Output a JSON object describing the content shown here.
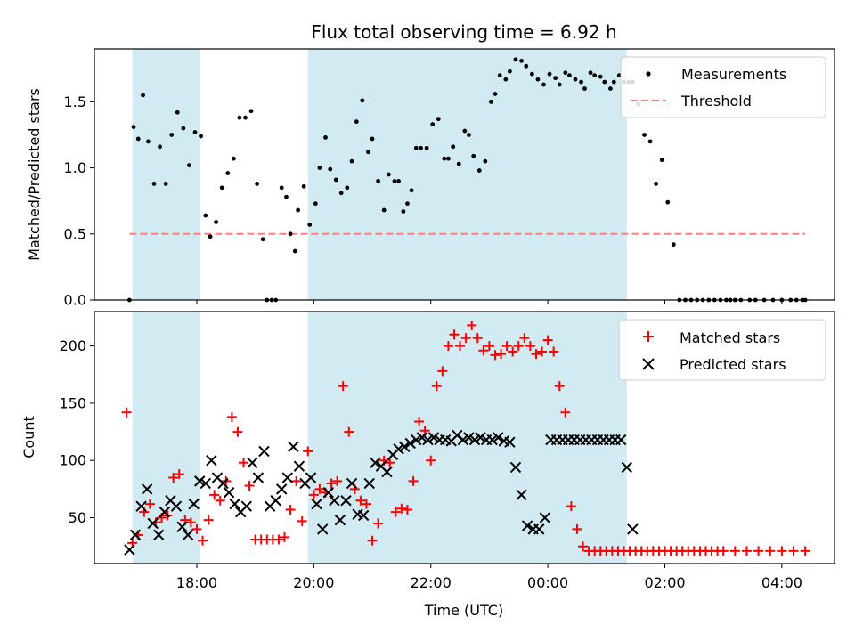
{
  "chart_data": {
    "type": "scatter",
    "title": "Flux total observing time = 6.92 h",
    "xlabel": "Time (UTC)",
    "x_unit": "hours since 00:00 UTC",
    "x_range": [
      -7.75,
      4.9
    ],
    "x_ticks": [
      {
        "value": -6,
        "label": "18:00"
      },
      {
        "value": -4,
        "label": "20:00"
      },
      {
        "value": -2,
        "label": "22:00"
      },
      {
        "value": 0,
        "label": "00:00"
      },
      {
        "value": 2,
        "label": "02:00"
      },
      {
        "value": 4,
        "label": "04:00"
      }
    ],
    "shaded_intervals": [
      [
        -7.1,
        -5.95
      ],
      [
        -4.1,
        1.35
      ]
    ],
    "shade_color": "#add8e6",
    "top_panel": {
      "ylabel": "Matched/Predicted stars",
      "ylim": [
        0,
        1.9
      ],
      "yticks": [
        {
          "value": 0,
          "label": "0.0"
        },
        {
          "value": 0.5,
          "label": "0.5"
        },
        {
          "value": 1.0,
          "label": "1.0"
        },
        {
          "value": 1.5,
          "label": "1.5"
        }
      ],
      "threshold": {
        "value": 0.5,
        "x_range": [
          -7.15,
          4.4
        ],
        "color": "#ff7f7f"
      },
      "legend": [
        {
          "name": "Measurements",
          "marker": "dot"
        },
        {
          "name": "Threshold",
          "marker": "dashed-line"
        }
      ],
      "legend_position": "top-right",
      "series": [
        {
          "name": "Measurements",
          "color": "#000000",
          "x": [
            -7.15,
            -7.08,
            -7.0,
            -6.92,
            -6.83,
            -6.73,
            -6.63,
            -6.53,
            -6.43,
            -6.33,
            -6.23,
            -6.13,
            -6.03,
            -5.93,
            -5.85,
            -5.77,
            -5.67,
            -5.57,
            -5.47,
            -5.37,
            -5.27,
            -5.17,
            -5.07,
            -4.97,
            -4.87,
            -4.8,
            -4.72,
            -4.65,
            -4.55,
            -4.47,
            -4.4,
            -4.32,
            -4.27,
            -4.17,
            -4.07,
            -3.97,
            -3.9,
            -3.8,
            -3.72,
            -3.62,
            -3.53,
            -3.43,
            -3.35,
            -3.27,
            -3.17,
            -3.07,
            -3.0,
            -2.9,
            -2.8,
            -2.72,
            -2.62,
            -2.55,
            -2.47,
            -2.4,
            -2.33,
            -2.25,
            -2.17,
            -2.07,
            -1.97,
            -1.87,
            -1.77,
            -1.7,
            -1.62,
            -1.52,
            -1.42,
            -1.35,
            -1.27,
            -1.17,
            -1.07,
            -0.97,
            -0.9,
            -0.82,
            -0.72,
            -0.65,
            -0.55,
            -0.45,
            -0.37,
            -0.27,
            -0.17,
            -0.07,
            0.03,
            0.13,
            0.2,
            0.3,
            0.37,
            0.47,
            0.57,
            0.63,
            0.73,
            0.8,
            0.9,
            0.97,
            1.07,
            1.13,
            1.22,
            1.3,
            1.38,
            1.45,
            1.55,
            1.65,
            1.75,
            1.85,
            1.95,
            2.05,
            2.15,
            2.25,
            2.35,
            2.45,
            2.55,
            2.65,
            2.75,
            2.85,
            2.95,
            3.05,
            3.12,
            3.2,
            3.3,
            3.45,
            3.55,
            3.7,
            3.85,
            4.0,
            4.15,
            4.25,
            4.35,
            4.4
          ],
          "y": [
            0.0,
            1.31,
            1.22,
            1.55,
            1.2,
            0.88,
            1.16,
            0.88,
            1.25,
            1.42,
            1.3,
            1.02,
            1.27,
            1.24,
            0.64,
            0.48,
            0.59,
            0.85,
            0.96,
            1.07,
            1.38,
            1.38,
            1.43,
            0.88,
            0.46,
            0.0,
            0.0,
            0.0,
            0.85,
            0.78,
            0.5,
            0.37,
            0.68,
            0.86,
            0.57,
            0.73,
            1.0,
            1.23,
            0.99,
            0.91,
            0.81,
            0.85,
            1.05,
            1.35,
            1.51,
            1.12,
            1.22,
            0.9,
            0.68,
            0.95,
            0.9,
            0.9,
            0.67,
            0.73,
            0.83,
            1.15,
            1.15,
            1.15,
            1.33,
            1.37,
            1.07,
            1.07,
            1.16,
            1.03,
            1.28,
            1.25,
            1.09,
            0.98,
            1.05,
            1.5,
            1.56,
            1.7,
            1.67,
            1.73,
            1.82,
            1.81,
            1.77,
            1.71,
            1.67,
            1.63,
            1.71,
            1.68,
            1.63,
            1.72,
            1.7,
            1.67,
            1.65,
            1.6,
            1.72,
            1.7,
            1.69,
            1.65,
            1.6,
            1.65,
            1.7,
            1.65,
            1.65,
            1.65,
            1.48,
            1.25,
            1.2,
            0.88,
            1.06,
            0.74,
            0.42,
            0.0,
            0.0,
            0.0,
            0.0,
            0.0,
            0.0,
            0.0,
            0.0,
            0.0,
            0.0,
            0.0,
            0.0,
            0.0,
            0.0,
            0.0,
            0.0,
            0.0,
            0.0,
            0.0,
            0.0,
            0.0
          ]
        }
      ]
    },
    "bottom_panel": {
      "ylabel": "Count",
      "ylim": [
        10,
        230
      ],
      "yticks": [
        {
          "value": 50,
          "label": "50"
        },
        {
          "value": 100,
          "label": "100"
        },
        {
          "value": 150,
          "label": "150"
        },
        {
          "value": 200,
          "label": "200"
        }
      ],
      "legend": [
        {
          "name": "Matched stars",
          "marker": "plus"
        },
        {
          "name": "Predicted stars",
          "marker": "x"
        }
      ],
      "legend_position": "top-right",
      "series": [
        {
          "name": "Matched stars",
          "marker": "plus",
          "color": "#ff0000",
          "x": [
            -7.2,
            -7.1,
            -7.0,
            -6.9,
            -6.8,
            -6.7,
            -6.6,
            -6.5,
            -6.4,
            -6.3,
            -6.2,
            -6.1,
            -6.0,
            -5.9,
            -5.8,
            -5.7,
            -5.6,
            -5.5,
            -5.4,
            -5.3,
            -5.2,
            -5.1,
            -5.0,
            -4.9,
            -4.8,
            -4.7,
            -4.6,
            -4.5,
            -4.4,
            -4.3,
            -4.2,
            -4.1,
            -4.0,
            -3.9,
            -3.8,
            -3.7,
            -3.6,
            -3.5,
            -3.4,
            -3.3,
            -3.2,
            -3.1,
            -3.0,
            -2.9,
            -2.8,
            -2.7,
            -2.6,
            -2.5,
            -2.4,
            -2.3,
            -2.2,
            -2.1,
            -2.0,
            -1.9,
            -1.8,
            -1.7,
            -1.6,
            -1.5,
            -1.4,
            -1.3,
            -1.2,
            -1.1,
            -1.0,
            -0.9,
            -0.8,
            -0.7,
            -0.6,
            -0.5,
            -0.4,
            -0.3,
            -0.2,
            -0.1,
            0.0,
            0.1,
            0.2,
            0.3,
            0.4,
            0.5,
            0.6,
            0.7,
            0.8,
            0.9,
            1.0,
            1.1,
            1.2,
            1.3,
            1.4,
            1.5,
            1.6,
            1.7,
            1.8,
            1.9,
            2.0,
            2.1,
            2.2,
            2.3,
            2.4,
            2.5,
            2.6,
            2.7,
            2.8,
            2.9,
            3.0,
            3.2,
            3.4,
            3.6,
            3.8,
            4.0,
            4.2,
            4.4
          ],
          "y": [
            142,
            28,
            35,
            55,
            62,
            46,
            50,
            52,
            85,
            88,
            48,
            46,
            40,
            30,
            48,
            70,
            65,
            82,
            138,
            125,
            98,
            78,
            31,
            31,
            31,
            31,
            31,
            33,
            57,
            82,
            47,
            108,
            70,
            75,
            72,
            80,
            82,
            165,
            125,
            75,
            65,
            62,
            30,
            45,
            100,
            98,
            55,
            58,
            57,
            82,
            134,
            126,
            100,
            165,
            178,
            200,
            210,
            200,
            207,
            218,
            207,
            196,
            200,
            192,
            193,
            200,
            195,
            200,
            207,
            200,
            193,
            195,
            205,
            195,
            165,
            142,
            60,
            40,
            25,
            21,
            21,
            21,
            21,
            21,
            21,
            21,
            21,
            21,
            21,
            21,
            21,
            21,
            21,
            21,
            21,
            21,
            21,
            21,
            21,
            21,
            21,
            21,
            21,
            21,
            21,
            21,
            21,
            21,
            21,
            21
          ],
          "points": "x and y paired above"
        },
        {
          "name": "Predicted stars",
          "marker": "x",
          "color": "#000000",
          "x": [
            -7.15,
            -7.05,
            -6.95,
            -6.85,
            -6.75,
            -6.65,
            -6.55,
            -6.45,
            -6.35,
            -6.25,
            -6.15,
            -6.05,
            -5.95,
            -5.85,
            -5.75,
            -5.65,
            -5.55,
            -5.45,
            -5.35,
            -5.25,
            -5.15,
            -5.05,
            -4.95,
            -4.85,
            -4.75,
            -4.65,
            -4.55,
            -4.45,
            -4.35,
            -4.25,
            -4.15,
            -4.05,
            -3.95,
            -3.85,
            -3.75,
            -3.65,
            -3.55,
            -3.45,
            -3.35,
            -3.25,
            -3.15,
            -3.05,
            -2.95,
            -2.85,
            -2.75,
            -2.65,
            -2.55,
            -2.45,
            -2.35,
            -2.25,
            -2.15,
            -2.05,
            -1.95,
            -1.85,
            -1.75,
            -1.65,
            -1.55,
            -1.45,
            -1.35,
            -1.25,
            -1.15,
            -1.05,
            -0.95,
            -0.85,
            -0.75,
            -0.65,
            -0.55,
            -0.45,
            -0.35,
            -0.25,
            -0.15,
            -0.05,
            0.05,
            0.15,
            0.25,
            0.35,
            0.45,
            0.55,
            0.65,
            0.75,
            0.85,
            0.95,
            1.05,
            1.15,
            1.25,
            1.35,
            1.45
          ],
          "y": [
            22,
            35,
            60,
            75,
            45,
            35,
            55,
            65,
            60,
            42,
            35,
            62,
            82,
            80,
            100,
            85,
            80,
            72,
            62,
            55,
            60,
            98,
            85,
            108,
            60,
            65,
            75,
            85,
            112,
            95,
            80,
            85,
            62,
            40,
            72,
            65,
            48,
            65,
            80,
            53,
            52,
            80,
            98,
            95,
            90,
            105,
            110,
            112,
            115,
            118,
            120,
            118,
            120,
            118,
            118,
            117,
            122,
            118,
            120,
            118,
            120,
            118,
            118,
            120,
            117,
            116,
            94,
            70,
            43,
            40,
            40,
            50,
            118,
            118,
            118,
            118,
            118,
            118,
            118,
            118,
            118,
            118,
            118,
            118,
            118,
            94,
            40
          ]
        }
      ]
    }
  }
}
